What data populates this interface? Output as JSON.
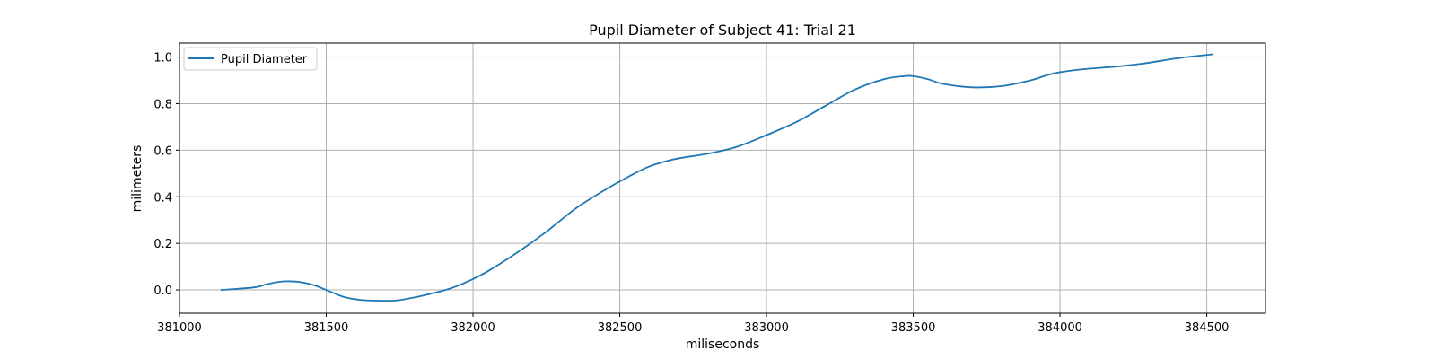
{
  "chart_data": {
    "type": "line",
    "title": "Pupil Diameter of Subject 41: Trial 21",
    "xlabel": "miliseconds",
    "ylabel": "milimeters",
    "xlim": [
      381000,
      384700
    ],
    "ylim": [
      -0.1,
      1.06
    ],
    "xticks": [
      381000,
      381500,
      382000,
      382500,
      383000,
      383500,
      384000,
      384500
    ],
    "yticks": [
      0.0,
      0.2,
      0.4,
      0.6,
      0.8,
      1.0
    ],
    "grid": true,
    "legend_position": "top-left",
    "series": [
      {
        "name": "Pupil Diameter",
        "color": "#1f77b4",
        "x": [
          381140,
          381200,
          381260,
          381300,
          381340,
          381380,
          381420,
          381460,
          381500,
          381560,
          381620,
          381680,
          381740,
          381800,
          381860,
          381920,
          381980,
          382050,
          382150,
          382250,
          382350,
          382450,
          382550,
          382600,
          382650,
          382700,
          382800,
          382900,
          383000,
          383100,
          383200,
          383300,
          383400,
          383470,
          383500,
          383550,
          383600,
          383700,
          383800,
          383900,
          383950,
          384000,
          384100,
          384200,
          384300,
          384400,
          384520
        ],
        "y": [
          0.0,
          0.005,
          0.012,
          0.025,
          0.035,
          0.037,
          0.032,
          0.02,
          0.0,
          -0.03,
          -0.043,
          -0.046,
          -0.045,
          -0.032,
          -0.015,
          0.005,
          0.035,
          0.08,
          0.16,
          0.25,
          0.35,
          0.43,
          0.5,
          0.53,
          0.55,
          0.565,
          0.585,
          0.615,
          0.665,
          0.72,
          0.79,
          0.86,
          0.905,
          0.918,
          0.918,
          0.905,
          0.885,
          0.87,
          0.875,
          0.9,
          0.92,
          0.935,
          0.95,
          0.96,
          0.975,
          0.995,
          1.012
        ]
      }
    ]
  }
}
